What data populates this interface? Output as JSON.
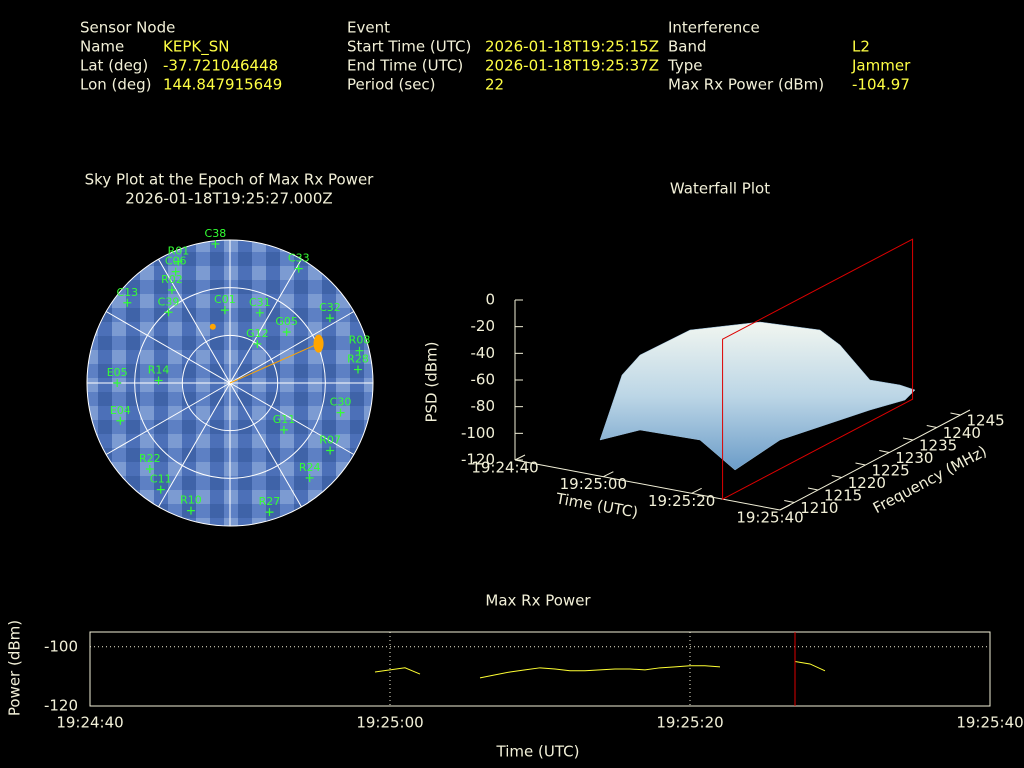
{
  "header": {
    "sensor": {
      "title": "Sensor Node",
      "rows": [
        [
          "Name",
          "KEPK_SN"
        ],
        [
          "Lat (deg)",
          -37.721046448
        ],
        [
          "Lon (deg)",
          144.847915649
        ]
      ]
    },
    "event": {
      "title": "Event",
      "rows": [
        [
          "Start Time (UTC)",
          "2026-01-18T19:25:15Z"
        ],
        [
          "End Time (UTC)",
          "2026-01-18T19:25:37Z"
        ],
        [
          "Period (sec)",
          22
        ]
      ]
    },
    "interference": {
      "title": "Interference",
      "rows": [
        [
          "Band",
          "L2"
        ],
        [
          "Type",
          "Jammer"
        ],
        [
          "Max Rx Power (dBm)",
          -104.97
        ]
      ]
    }
  },
  "chart_data": [
    {
      "type": "polar-scatter",
      "title": "Sky Plot at the Epoch of Max Rx Power",
      "subtitle": "2026-01-18T19:25:27.000Z",
      "rlim": [
        0,
        90
      ],
      "rticks": [
        0,
        30,
        60
      ],
      "azticks": [
        0,
        30,
        60,
        90,
        120,
        150,
        180,
        210,
        240,
        270,
        300,
        330
      ],
      "color": "#33ff33",
      "names": [
        "C38",
        "C33",
        "R01",
        "C06",
        "R02",
        "C13",
        "C39",
        "C01",
        "C31",
        "G05",
        "C32",
        "R08",
        "R28",
        "G12",
        "E05",
        "E04",
        "R14",
        "R22",
        "G11",
        "C11",
        "R10",
        "R27",
        "C30",
        "R24",
        "R07"
      ],
      "az": [
        354,
        31,
        337,
        334,
        328,
        308,
        319,
        356,
        23,
        48,
        57,
        76,
        84,
        35,
        270,
        251,
        272,
        223,
        131,
        213,
        197,
        163,
        105,
        140,
        124
      ],
      "el": [
        2,
        6,
        7,
        12,
        21,
        8,
        31,
        44,
        42,
        42,
        15,
        6,
        9,
        60,
        19,
        17,
        45,
        16,
        45,
        10,
        6,
        5,
        18,
        12,
        14
      ],
      "interference": {
        "color": "#ffa500",
        "az": [
          66,
          343
        ],
        "el": [
          29,
          53
        ]
      }
    },
    {
      "type": "surface3d",
      "title": "Waterfall Plot",
      "xlabel": "Time (UTC)",
      "ylabel": "Frequency (MHz)",
      "zlabel": "PSD (dBm)",
      "xlim": [
        "19:24:40",
        "19:25:40"
      ],
      "xticks": [
        "19:24:40",
        "19:25:00",
        "19:25:20",
        "19:25:40"
      ],
      "ylim": [
        1207,
        1247
      ],
      "yticks": [
        1210,
        1215,
        1220,
        1225,
        1230,
        1235,
        1240,
        1245
      ],
      "zlim": [
        -120,
        0
      ],
      "zticks": [
        0,
        -20,
        -40,
        -60,
        -80,
        -100,
        -120
      ],
      "epoch_color": "#dd0000"
    },
    {
      "type": "line",
      "title": "Max Rx Power",
      "xlabel": "Time (UTC)",
      "ylabel": "Power (dBm)",
      "xlim": [
        "19:24:40",
        "19:25:40"
      ],
      "xticks": [
        "19:24:40",
        "19:25:00",
        "19:25:20",
        "19:25:40"
      ],
      "ylim": [
        -120,
        -95
      ],
      "yticks": [
        -120,
        -100
      ],
      "grid": true,
      "color": "#ffff33",
      "epoch_color": "#dd0000",
      "x": [
        "19:24:59",
        "19:25:00",
        "19:25:01",
        "19:25:02",
        "19:25:04",
        "19:25:06",
        "19:25:07",
        "19:25:08",
        "19:25:09",
        "19:25:10",
        "19:25:11",
        "19:25:12",
        "19:25:13",
        "19:25:14",
        "19:25:15",
        "19:25:16",
        "19:25:17",
        "19:25:18",
        "19:25:19",
        "19:25:20",
        "19:25:21",
        "19:25:22",
        "19:25:25",
        "19:25:27",
        "19:25:28",
        "19:25:29"
      ],
      "values": [
        -108.5,
        -107.8,
        -107.1,
        -109.2,
        null,
        -110.5,
        -109.5,
        -108.5,
        -107.8,
        -107.1,
        -107.5,
        -108.1,
        -108.1,
        -107.8,
        -107.5,
        -107.5,
        -107.8,
        -107.1,
        -106.8,
        -106.4,
        -106.4,
        -106.8,
        null,
        -104.97,
        -105.8,
        -108.1
      ]
    }
  ]
}
